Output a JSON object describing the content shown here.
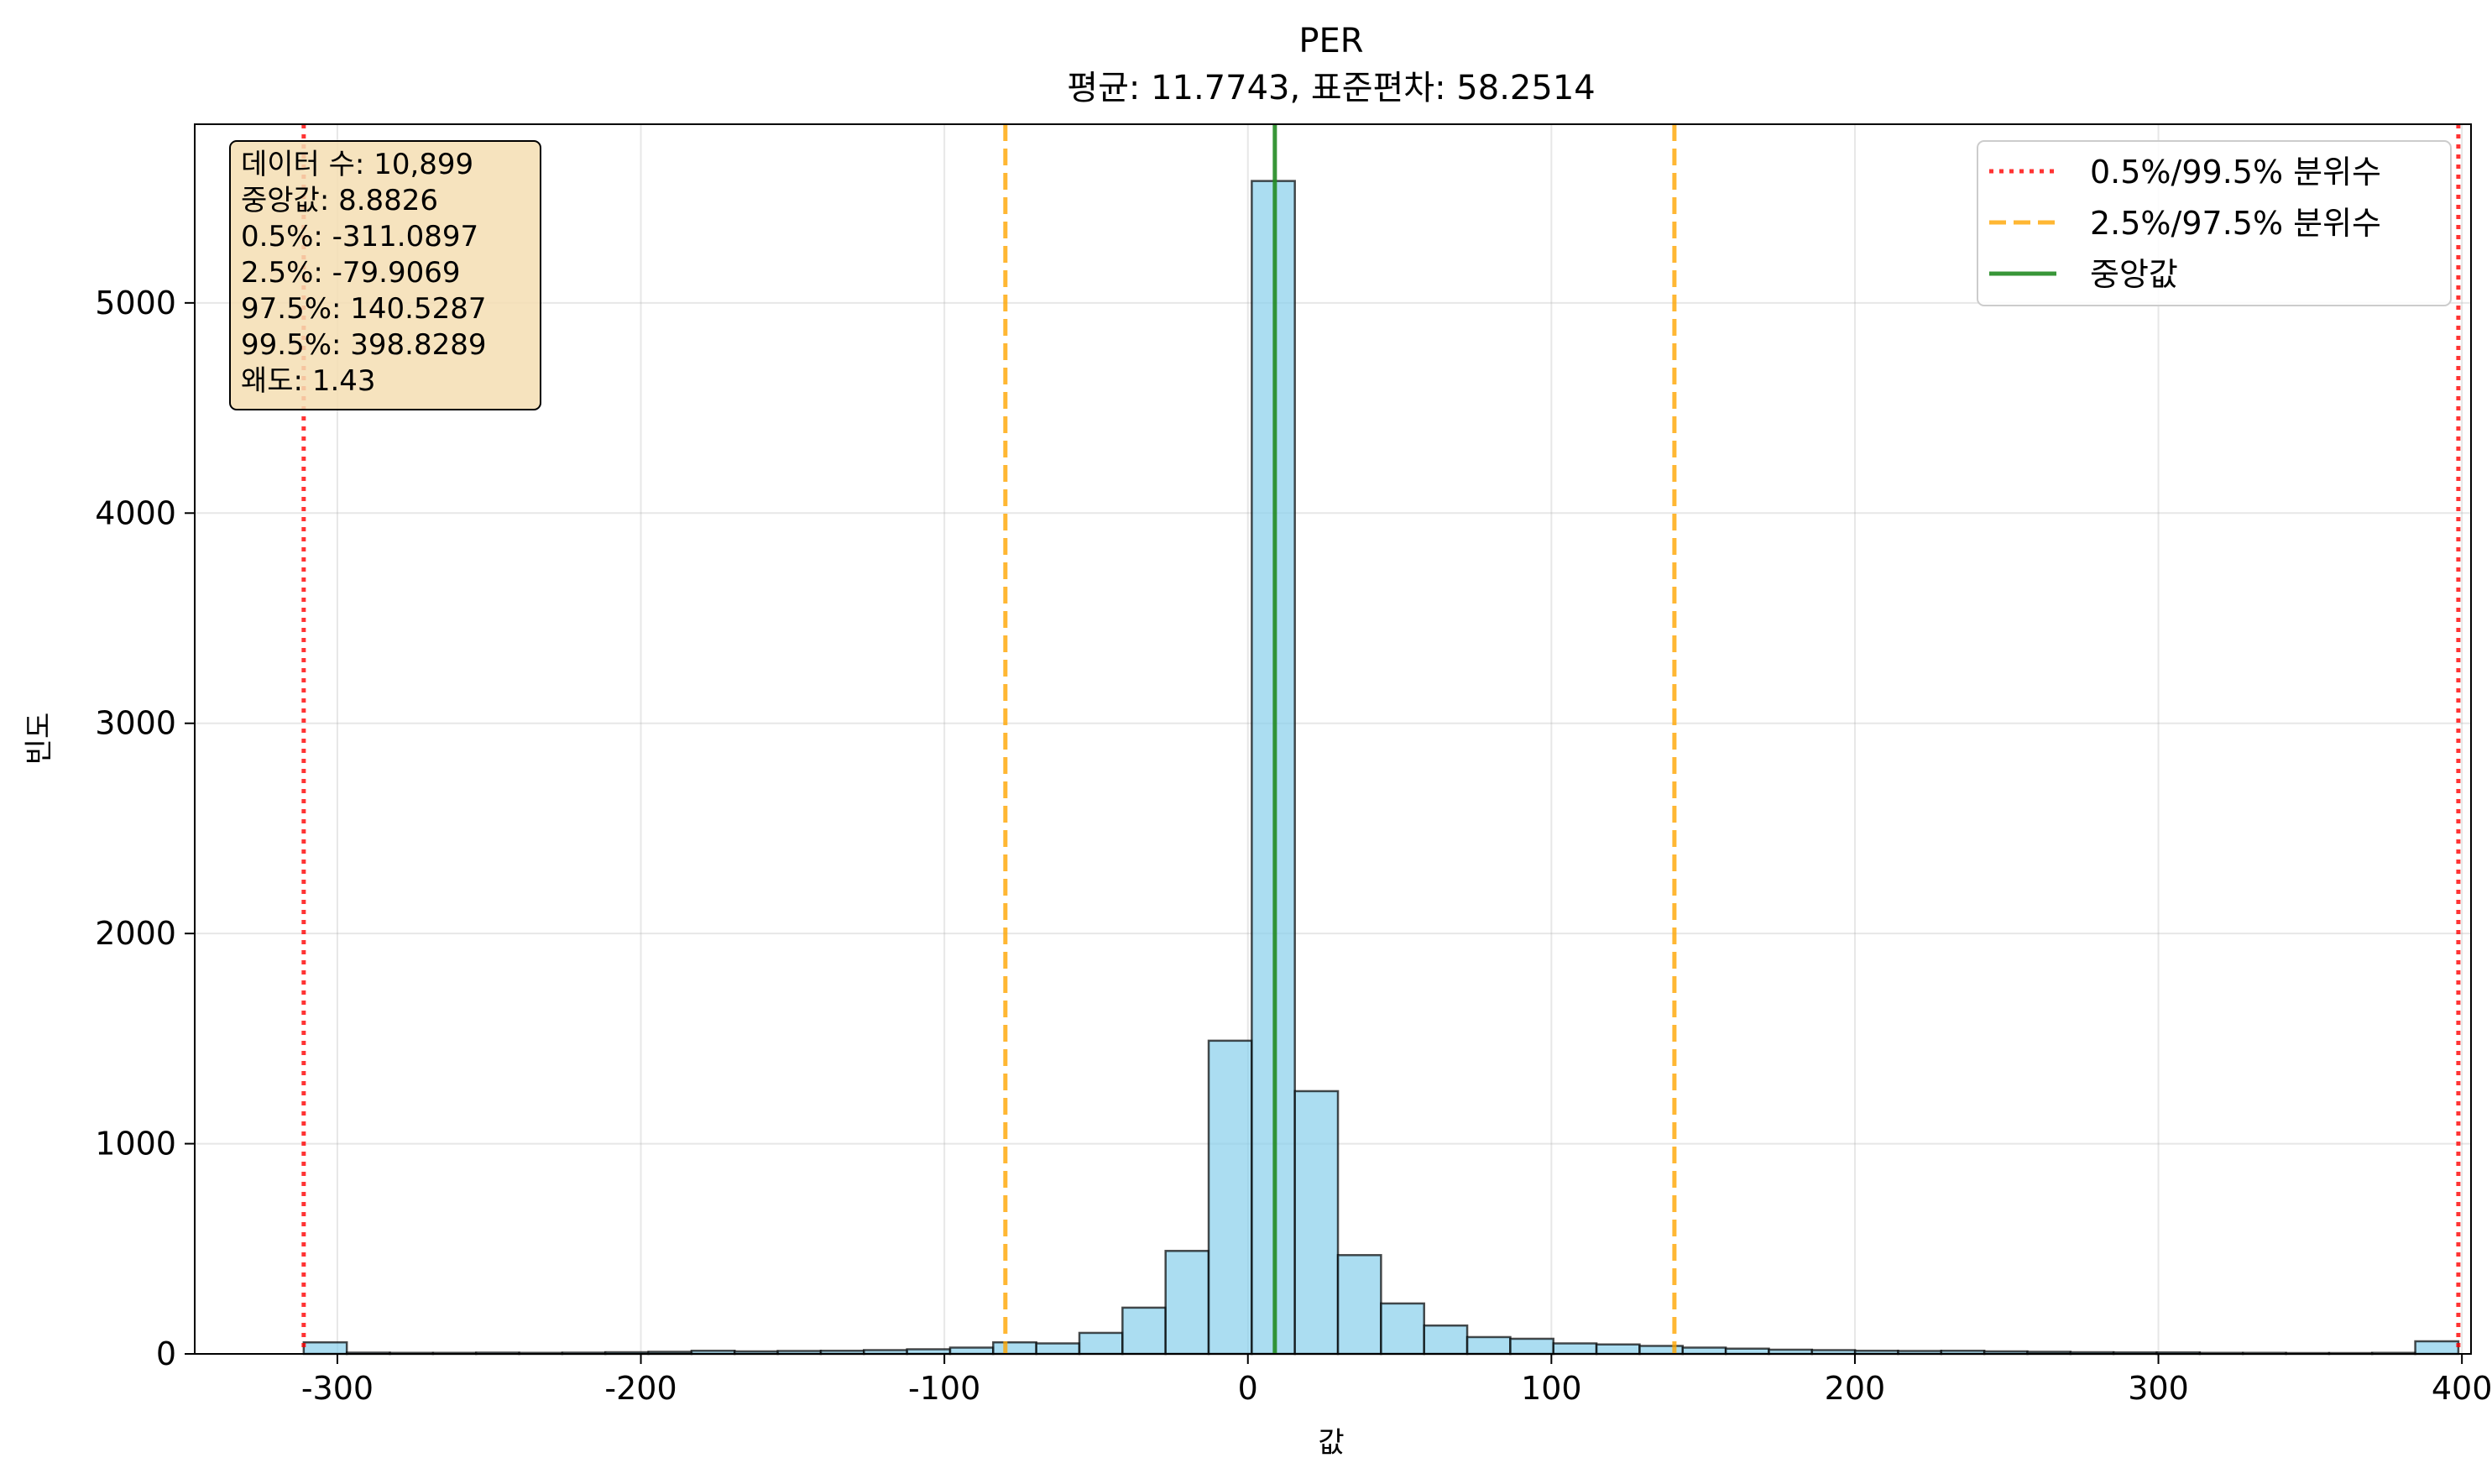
{
  "chart_data": {
    "type": "bar",
    "title": "PER",
    "subtitle": "평균: 11.7743, 표준편차: 58.2514",
    "xlabel": "값",
    "ylabel": "빈도",
    "xlim": [
      -347,
      403
    ],
    "ylim": [
      0,
      5850
    ],
    "xticks": [
      -300,
      -200,
      -100,
      0,
      100,
      200,
      300,
      400
    ],
    "xtick_labels": [
      "-300",
      "-200",
      "-100",
      "0",
      "100",
      "200",
      "300",
      "400"
    ],
    "yticks": [
      0,
      1000,
      2000,
      3000,
      4000,
      5000
    ],
    "ytick_labels": [
      "0",
      "1000",
      "2000",
      "3000",
      "4000",
      "5000"
    ],
    "grid": true,
    "bin_start": -311.0897,
    "bin_width": 14.1984,
    "values": [
      55,
      6,
      5,
      5,
      6,
      5,
      6,
      8,
      10,
      15,
      12,
      14,
      15,
      18,
      22,
      30,
      55,
      50,
      100,
      220,
      490,
      1490,
      5580,
      1250,
      470,
      240,
      135,
      80,
      72,
      50,
      45,
      38,
      30,
      25,
      20,
      18,
      15,
      14,
      15,
      12,
      10,
      8,
      7,
      7,
      5,
      5,
      4,
      4,
      5,
      60
    ],
    "bar_color": "#87CEEB",
    "vlines": [
      {
        "x": -311.0897,
        "color": "#ff0000",
        "style": "dotted",
        "legend": 0
      },
      {
        "x": 398.8289,
        "color": "#ff0000",
        "style": "dotted",
        "legend": 0
      },
      {
        "x": -79.9069,
        "color": "#ffa500",
        "style": "dashed",
        "legend": 1
      },
      {
        "x": 140.5287,
        "color": "#ffa500",
        "style": "dashed",
        "legend": 1
      },
      {
        "x": 8.8826,
        "color": "#228b22",
        "style": "solid",
        "legend": 2
      }
    ],
    "legend_position": "top-right",
    "legend": [
      {
        "label": "0.5%/99.5% 분위수",
        "color": "#ff0000",
        "style": "dotted"
      },
      {
        "label": "2.5%/97.5% 분위수",
        "color": "#ffa500",
        "style": "dashed"
      },
      {
        "label": "중앙값",
        "color": "#228b22",
        "style": "solid"
      }
    ],
    "stats_box": {
      "position": "top-left",
      "lines": [
        "데이터 수: 10,899",
        "중앙값: 8.8826",
        "0.5%: -311.0897",
        "2.5%: -79.9069",
        "97.5%: 140.5287",
        "99.5%: 398.8289",
        "왜도: 1.43"
      ]
    }
  }
}
